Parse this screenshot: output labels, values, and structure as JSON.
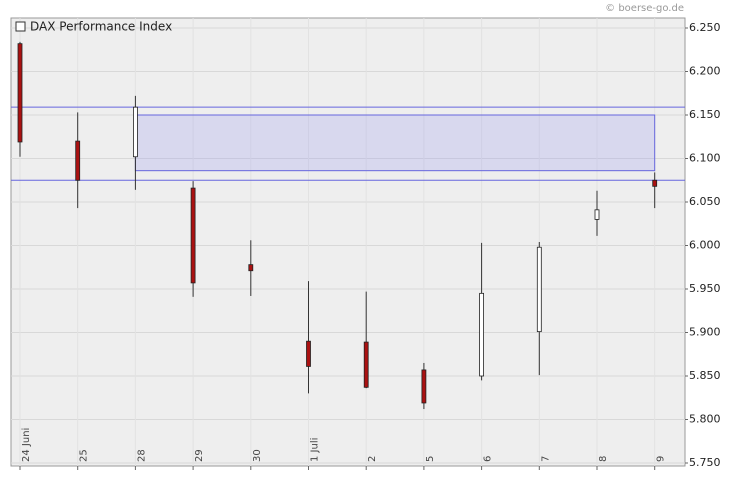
{
  "chart_data": {
    "type": "candlestick",
    "legend": "DAX Performance Index",
    "source": "© boerse-go.de",
    "categories": [
      "24 Juni",
      "25",
      "28",
      "29",
      "30",
      "1 Juli",
      "2",
      "5",
      "6",
      "7",
      "8",
      "9"
    ],
    "open": [
      6232,
      6120,
      6102,
      6066,
      5978,
      5890,
      5889,
      5857,
      5850,
      5901,
      6030,
      6075
    ],
    "high": [
      6234,
      6153,
      6172,
      6074,
      6006,
      5959,
      5947,
      5865,
      6003,
      6004,
      6063,
      6084
    ],
    "low": [
      6102,
      6043,
      6064,
      5941,
      5942,
      5830,
      5836,
      5812,
      5845,
      5851,
      6011,
      6043
    ],
    "close": [
      6119,
      6075,
      6159,
      5957,
      5971,
      5861,
      5837,
      5819,
      5945,
      5998,
      6041,
      6068
    ],
    "up_color": "#ffffff",
    "down_color": "#aa1111",
    "hlines": [
      6159,
      6075
    ],
    "zone": [
      6086,
      6150
    ],
    "ylim": [
      5750,
      6250
    ],
    "yticks": [
      {
        "value": 5750,
        "label": "5.750"
      },
      {
        "value": 5800,
        "label": "5.800"
      },
      {
        "value": 5850,
        "label": "5.850"
      },
      {
        "value": 5900,
        "label": "5.900"
      },
      {
        "value": 5950,
        "label": "5.950"
      },
      {
        "value": 6000,
        "label": "6.000"
      },
      {
        "value": 6050,
        "label": "6.050"
      },
      {
        "value": 6100,
        "label": "6.100"
      },
      {
        "value": 6150,
        "label": "6.150"
      },
      {
        "value": 6200,
        "label": "6.200"
      },
      {
        "value": 6250,
        "label": "6.250"
      }
    ],
    "grid": true
  }
}
